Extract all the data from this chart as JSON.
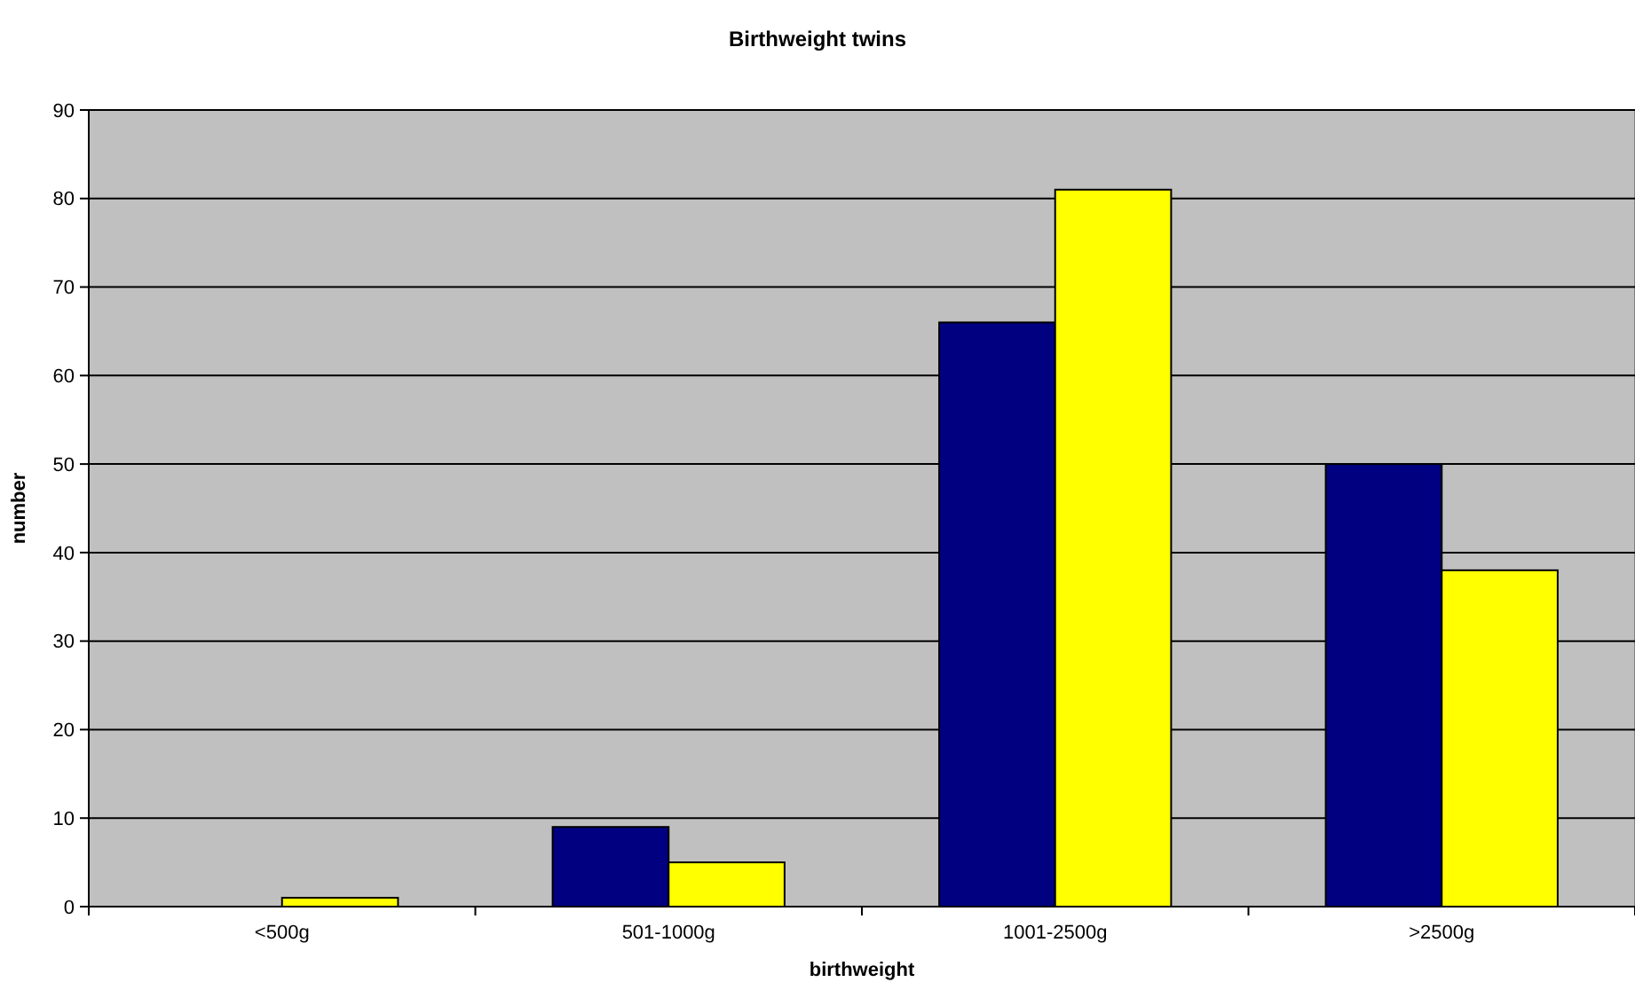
{
  "chart_data": {
    "type": "bar",
    "title": "Birthweight twins",
    "xlabel": "birthweight",
    "ylabel": "number",
    "categories": [
      "<500g",
      "501-1000g",
      "1001-2500g",
      ">2500g"
    ],
    "series": [
      {
        "color": "#000080",
        "values": [
          0,
          9,
          66,
          50
        ]
      },
      {
        "color": "#ffff00",
        "values": [
          1,
          5,
          81,
          38
        ]
      }
    ],
    "ylim": [
      0,
      90
    ],
    "yticks": [
      0,
      10,
      20,
      30,
      40,
      50,
      60,
      70,
      80,
      90
    ],
    "grid": "y"
  }
}
